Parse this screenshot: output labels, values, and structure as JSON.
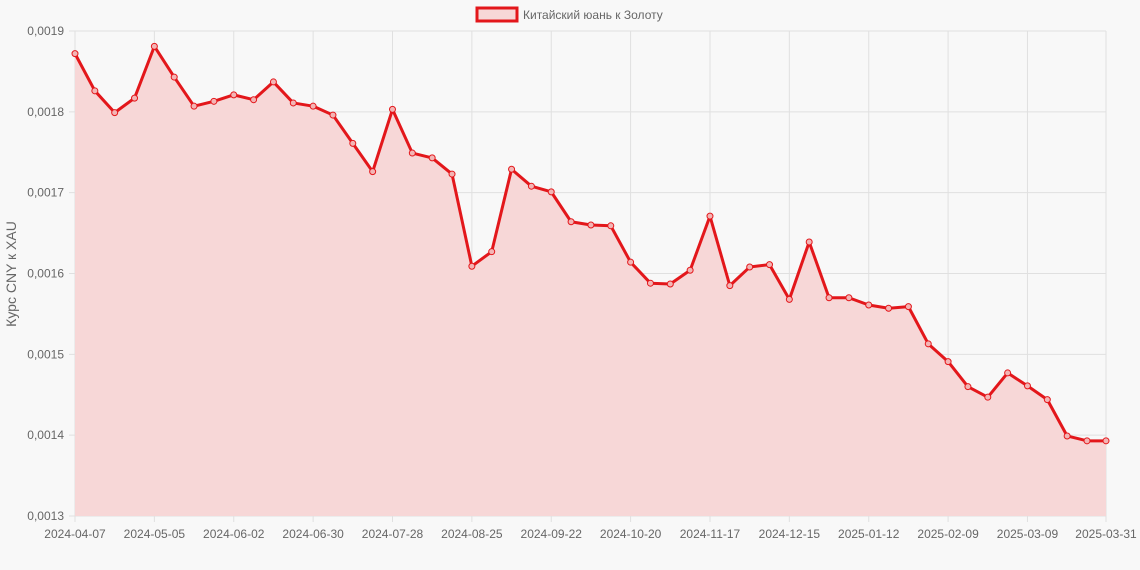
{
  "chart_data": {
    "type": "line",
    "title": "",
    "legend": {
      "position": "top",
      "entries": [
        "Китайский юань к Золоту"
      ]
    },
    "xlabel": "",
    "ylabel": "Курс CNY к XAU",
    "ylim": [
      0.0013,
      0.0019
    ],
    "y_ticks": [
      "0,0019",
      "0,0018",
      "0,0017",
      "0,0016",
      "0,0015",
      "0,0014",
      "0,0013"
    ],
    "x_tick_labels": [
      "2024-04-07",
      "2024-05-05",
      "2024-06-02",
      "2024-06-30",
      "2024-07-28",
      "2024-08-25",
      "2024-09-22",
      "2024-10-20",
      "2024-11-17",
      "2024-12-15",
      "2025-01-12",
      "2025-02-09",
      "2025-03-09",
      "2025-03-31"
    ],
    "grid": true,
    "fill": true,
    "colors": {
      "line": "#e3171b",
      "fill": "#f7d7d7",
      "point_fill": "#f3b5b5",
      "grid": "#e0e0e0",
      "background": "#f8f8f8"
    },
    "x": [
      "2024-04-07",
      "2024-04-14",
      "2024-04-21",
      "2024-04-28",
      "2024-05-05",
      "2024-05-12",
      "2024-05-19",
      "2024-05-26",
      "2024-06-02",
      "2024-06-09",
      "2024-06-16",
      "2024-06-23",
      "2024-06-30",
      "2024-07-07",
      "2024-07-14",
      "2024-07-21",
      "2024-07-28",
      "2024-08-04",
      "2024-08-11",
      "2024-08-18",
      "2024-08-25",
      "2024-09-01",
      "2024-09-08",
      "2024-09-15",
      "2024-09-22",
      "2024-09-29",
      "2024-10-06",
      "2024-10-13",
      "2024-10-20",
      "2024-10-27",
      "2024-11-03",
      "2024-11-10",
      "2024-11-17",
      "2024-11-24",
      "2024-12-01",
      "2024-12-08",
      "2024-12-15",
      "2024-12-22",
      "2024-12-29",
      "2025-01-05",
      "2025-01-12",
      "2025-01-19",
      "2025-01-26",
      "2025-02-02",
      "2025-02-09",
      "2025-02-16",
      "2025-02-23",
      "2025-03-02",
      "2025-03-09",
      "2025-03-16",
      "2025-03-23",
      "2025-03-30",
      "2025-03-31"
    ],
    "series": [
      {
        "name": "Китайский юань к Золоту",
        "values": [
          0.001872,
          0.001826,
          0.001799,
          0.001817,
          0.001881,
          0.001843,
          0.001807,
          0.001813,
          0.001821,
          0.001815,
          0.001837,
          0.001811,
          0.001807,
          0.001796,
          0.001761,
          0.001726,
          0.001803,
          0.001749,
          0.001743,
          0.001723,
          0.001609,
          0.001627,
          0.001729,
          0.001708,
          0.001701,
          0.001664,
          0.00166,
          0.001659,
          0.001614,
          0.001588,
          0.001587,
          0.001604,
          0.001671,
          0.001585,
          0.001608,
          0.001611,
          0.001568,
          0.001639,
          0.00157,
          0.00157,
          0.001561,
          0.001557,
          0.001559,
          0.001513,
          0.001491,
          0.00146,
          0.001447,
          0.001477,
          0.001461,
          0.001444,
          0.001399,
          0.001393,
          0.001393
        ]
      }
    ]
  }
}
